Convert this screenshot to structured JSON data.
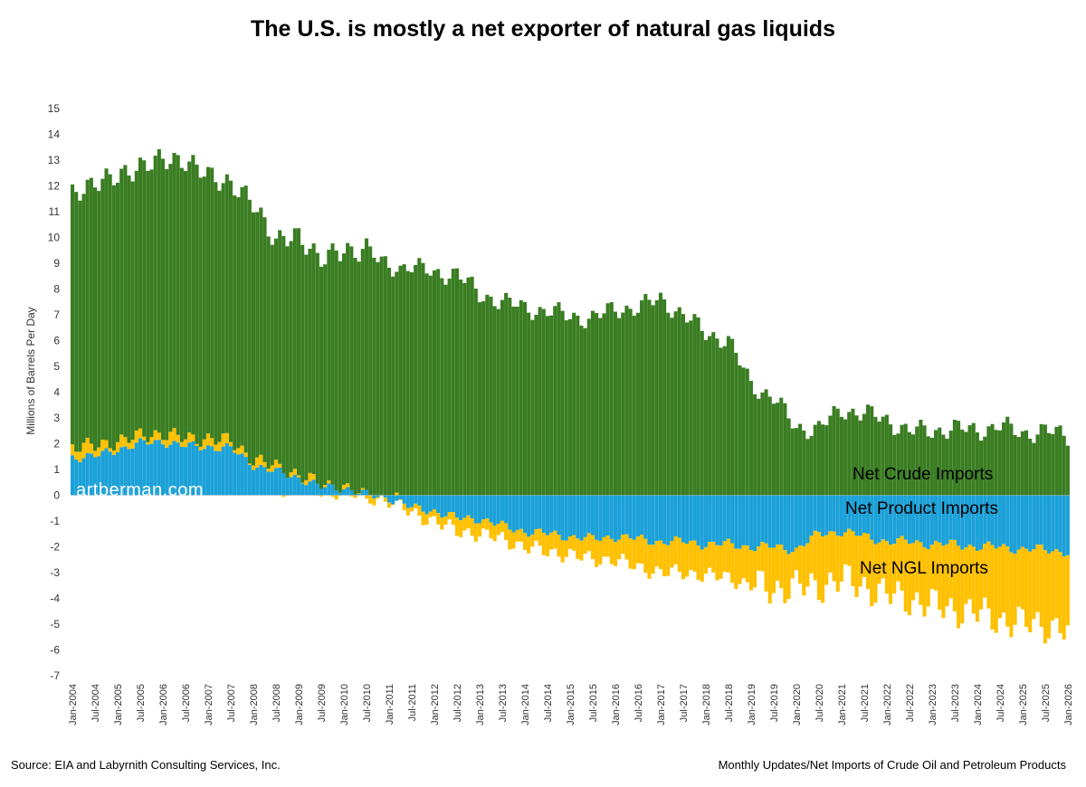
{
  "chart_data": {
    "type": "bar",
    "stacked": true,
    "title": "The U.S. is mostly a net exporter of natural gas liquids",
    "ylabel": "Millions of Barrels Per Day",
    "ylim": [
      -7,
      15
    ],
    "yticks": [
      15,
      14,
      13,
      12,
      11,
      10,
      9,
      8,
      7,
      6,
      5,
      4,
      3,
      2,
      1,
      0,
      -1,
      -2,
      -3,
      -4,
      -5,
      -6,
      -7
    ],
    "x_tick_labels": [
      "Jan-2004",
      "Jul-2004",
      "Jan-2005",
      "Jul-2005",
      "Jan-2006",
      "Jul-2006",
      "Jan-2007",
      "Jul-2007",
      "Jan-2008",
      "Jul-2008",
      "Jan-2009",
      "Jul-2009",
      "Jan-2010",
      "Jul-2010",
      "Jan-2011",
      "Jul-2011",
      "Jan-2012",
      "Jul-2012",
      "Jan-2013",
      "Jul-2013",
      "Jan-2014",
      "Jul-2014",
      "Jan-2015",
      "Jul-2015",
      "Jan-2016",
      "Jul-2016",
      "Jan-2017",
      "Jul-2017",
      "Jan-2018",
      "Jul-2018",
      "Jan-2019",
      "Jul-2019",
      "Jan-2020",
      "Jul-2020",
      "Jan-2021",
      "Jul-2021",
      "Jan-2022",
      "Jul-2022",
      "Jan-2023",
      "Jul-2023",
      "Jan-2024",
      "Jul-2024",
      "Jan-2025",
      "Jul-2025",
      "Jan-2026"
    ],
    "series": [
      {
        "name": "Net Crude Imports",
        "color": "#3a7d22",
        "anchors": [
          [
            "Jan-2004",
            9.7
          ],
          [
            "Jul-2004",
            10.3
          ],
          [
            "Jan-2005",
            10.2
          ],
          [
            "Jul-2005",
            10.5
          ],
          [
            "Jan-2006",
            10.6
          ],
          [
            "Jul-2006",
            10.8
          ],
          [
            "Jan-2007",
            10.2
          ],
          [
            "Jul-2007",
            10.0
          ],
          [
            "Jan-2008",
            9.9
          ],
          [
            "Jul-2008",
            8.8
          ],
          [
            "Jan-2009",
            9.2
          ],
          [
            "Jul-2009",
            8.8
          ],
          [
            "Jan-2010",
            9.1
          ],
          [
            "Jul-2010",
            9.6
          ],
          [
            "Jan-2011",
            8.7
          ],
          [
            "Jul-2011",
            9.0
          ],
          [
            "Jan-2012",
            8.5
          ],
          [
            "Jul-2012",
            8.7
          ],
          [
            "Jan-2013",
            7.7
          ],
          [
            "Jul-2013",
            7.6
          ],
          [
            "Jan-2014",
            7.2
          ],
          [
            "Jul-2014",
            7.2
          ],
          [
            "Jan-2015",
            6.9
          ],
          [
            "Jul-2015",
            6.9
          ],
          [
            "Jan-2016",
            7.2
          ],
          [
            "Jul-2016",
            7.3
          ],
          [
            "Jan-2017",
            7.6
          ],
          [
            "Jul-2017",
            7.0
          ],
          [
            "Jan-2018",
            6.3
          ],
          [
            "Jul-2018",
            6.0
          ],
          [
            "Jan-2019",
            4.3
          ],
          [
            "Jul-2019",
            3.8
          ],
          [
            "Jan-2020",
            2.6
          ],
          [
            "Jul-2020",
            2.6
          ],
          [
            "Jan-2021",
            3.3
          ],
          [
            "Jul-2021",
            3.2
          ],
          [
            "Jan-2022",
            2.9
          ],
          [
            "Jul-2022",
            2.5
          ],
          [
            "Jan-2023",
            2.5
          ],
          [
            "Jul-2023",
            2.6
          ],
          [
            "Jan-2024",
            2.5
          ],
          [
            "Jul-2024",
            2.7
          ],
          [
            "Jan-2025",
            2.4
          ],
          [
            "Jul-2025",
            2.5
          ],
          [
            "Jan-2026",
            2.3
          ]
        ]
      },
      {
        "name": "Net Product Imports",
        "color": "#1ba1d8",
        "anchors": [
          [
            "Jan-2004",
            1.5
          ],
          [
            "Jul-2004",
            1.5
          ],
          [
            "Jan-2005",
            1.8
          ],
          [
            "Jul-2005",
            2.0
          ],
          [
            "Jan-2006",
            2.1
          ],
          [
            "Jul-2006",
            1.9
          ],
          [
            "Jan-2007",
            1.9
          ],
          [
            "Jul-2007",
            1.8
          ],
          [
            "Jan-2008",
            1.2
          ],
          [
            "Jul-2008",
            0.9
          ],
          [
            "Jan-2009",
            0.7
          ],
          [
            "Jul-2009",
            0.3
          ],
          [
            "Jan-2010",
            0.3
          ],
          [
            "Jul-2010",
            0.0
          ],
          [
            "Jan-2011",
            -0.1
          ],
          [
            "Jul-2011",
            -0.5
          ],
          [
            "Jan-2012",
            -0.6
          ],
          [
            "Jul-2012",
            -0.9
          ],
          [
            "Jan-2013",
            -0.9
          ],
          [
            "Jul-2013",
            -1.2
          ],
          [
            "Jan-2014",
            -1.4
          ],
          [
            "Jul-2014",
            -1.5
          ],
          [
            "Jan-2015",
            -1.6
          ],
          [
            "Jul-2015",
            -1.7
          ],
          [
            "Jan-2016",
            -1.6
          ],
          [
            "Jul-2016",
            -1.7
          ],
          [
            "Jan-2017",
            -1.8
          ],
          [
            "Jul-2017",
            -1.8
          ],
          [
            "Jan-2018",
            -1.9
          ],
          [
            "Jul-2018",
            -1.9
          ],
          [
            "Jan-2019",
            -2.0
          ],
          [
            "Jul-2019",
            -2.0
          ],
          [
            "Jan-2020",
            -2.1
          ],
          [
            "Jul-2020",
            -1.5
          ],
          [
            "Jan-2021",
            -1.4
          ],
          [
            "Jul-2021",
            -1.6
          ],
          [
            "Jan-2022",
            -1.8
          ],
          [
            "Jul-2022",
            -1.8
          ],
          [
            "Jan-2023",
            -1.9
          ],
          [
            "Jul-2023",
            -1.9
          ],
          [
            "Jan-2024",
            -2.0
          ],
          [
            "Jul-2024",
            -2.0
          ],
          [
            "Jan-2025",
            -2.1
          ],
          [
            "Jul-2025",
            -2.1
          ],
          [
            "Jan-2026",
            -2.2
          ]
        ]
      },
      {
        "name": "Net NGL Imports",
        "color": "#ffc000",
        "anchors": [
          [
            "Jan-2004",
            0.4
          ],
          [
            "Jul-2004",
            0.4
          ],
          [
            "Jan-2005",
            0.3
          ],
          [
            "Jul-2005",
            0.3
          ],
          [
            "Jan-2006",
            0.3
          ],
          [
            "Jul-2006",
            0.3
          ],
          [
            "Jan-2007",
            0.3
          ],
          [
            "Jul-2007",
            0.3
          ],
          [
            "Jan-2008",
            0.2
          ],
          [
            "Jul-2008",
            0.2
          ],
          [
            "Jan-2009",
            0.1
          ],
          [
            "Jul-2009",
            0.1
          ],
          [
            "Jan-2010",
            0.0
          ],
          [
            "Jul-2010",
            -0.1
          ],
          [
            "Jan-2011",
            -0.1
          ],
          [
            "Jul-2011",
            -0.2
          ],
          [
            "Jan-2012",
            -0.4
          ],
          [
            "Jul-2012",
            -0.5
          ],
          [
            "Jan-2013",
            -0.6
          ],
          [
            "Jul-2013",
            -0.5
          ],
          [
            "Jan-2014",
            -0.6
          ],
          [
            "Jul-2014",
            -0.7
          ],
          [
            "Jan-2015",
            -0.7
          ],
          [
            "Jul-2015",
            -0.8
          ],
          [
            "Jan-2016",
            -0.9
          ],
          [
            "Jul-2016",
            -1.1
          ],
          [
            "Jan-2017",
            -1.2
          ],
          [
            "Jul-2017",
            -1.2
          ],
          [
            "Jan-2018",
            -1.2
          ],
          [
            "Jul-2018",
            -1.3
          ],
          [
            "Jan-2019",
            -1.5
          ],
          [
            "Jul-2019",
            -1.6
          ],
          [
            "Jan-2020",
            -1.5
          ],
          [
            "Jul-2020",
            -2.0
          ],
          [
            "Jan-2021",
            -1.9
          ],
          [
            "Jul-2021",
            -1.9
          ],
          [
            "Jan-2022",
            -2.1
          ],
          [
            "Jul-2022",
            -2.2
          ],
          [
            "Jan-2023",
            -2.4
          ],
          [
            "Jul-2023",
            -2.5
          ],
          [
            "Jan-2024",
            -2.6
          ],
          [
            "Jul-2024",
            -2.8
          ],
          [
            "Jan-2025",
            -2.9
          ],
          [
            "Jul-2025",
            -2.9
          ],
          [
            "Jan-2026",
            -3.1
          ]
        ]
      }
    ],
    "grid": false,
    "legend": "inline"
  },
  "annotations": {
    "watermark": "artberman.com",
    "source": "Source: EIA and Labyrnith Consulting Services, Inc.",
    "right_note": "Monthly Updates/Net Imports of Crude Oil and Petroleum Products"
  }
}
